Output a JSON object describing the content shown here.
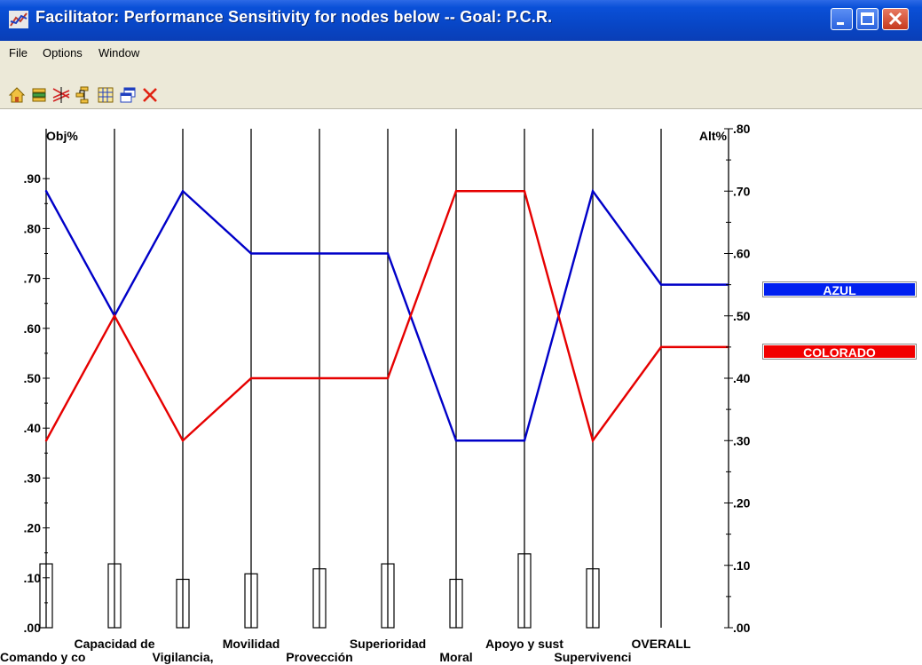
{
  "window": {
    "title": "Facilitator: Performance Sensitivity for nodes below -- Goal: P.C.R.",
    "app_icon": "chart-line-icon",
    "buttons": [
      "minimize-icon",
      "maximize-icon",
      "close-icon"
    ]
  },
  "menu": [
    "File",
    "Options",
    "Window"
  ],
  "toolbar": {
    "icons": [
      "home-icon",
      "stack-icon",
      "sensitivity-icon",
      "tree-icon",
      "grid-icon",
      "windows-icon",
      "delete-icon"
    ]
  },
  "axes": {
    "left_title": "Obj%",
    "right_title": "Alt%",
    "left_ticks": [
      ".00",
      ".10",
      ".20",
      ".30",
      ".40",
      ".50",
      ".60",
      ".70",
      ".80",
      ".90"
    ],
    "right_ticks": [
      ".00",
      ".10",
      ".20",
      ".30",
      ".40",
      ".50",
      ".60",
      ".70",
      ".80"
    ]
  },
  "colors": {
    "azul": "#0000c8",
    "colorado": "#e60000",
    "azul_legend": "#0020f0",
    "colorado_legend": "#f20000"
  },
  "chart_data": {
    "type": "line",
    "categories": [
      "Comando y co",
      "Capacidad de",
      "Vigilancia,",
      "Movilidad",
      "Provección",
      "Superioridad",
      "Moral",
      "Apoyo y sust",
      "Supervivenci",
      "OVERALL"
    ],
    "objective_weights": [
      0.128,
      0.128,
      0.097,
      0.108,
      0.118,
      0.128,
      0.097,
      0.148,
      0.118
    ],
    "series": [
      {
        "name": "AZUL",
        "values": [
          0.7,
          0.5,
          0.7,
          0.6,
          0.6,
          0.6,
          0.3,
          0.3,
          0.7,
          0.55
        ]
      },
      {
        "name": "COLORADO",
        "values": [
          0.3,
          0.5,
          0.3,
          0.4,
          0.4,
          0.4,
          0.7,
          0.7,
          0.3,
          0.45
        ]
      }
    ],
    "ylim_left": [
      0,
      1.0
    ],
    "ylim_right": [
      0,
      0.8
    ],
    "ylabel_left": "Obj%",
    "ylabel_right": "Alt%"
  }
}
